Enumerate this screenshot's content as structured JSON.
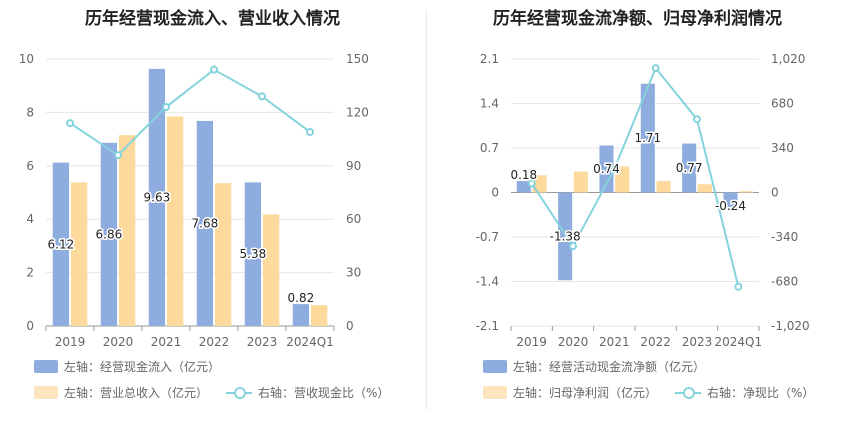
{
  "chart_data": [
    {
      "id": "left",
      "type": "bar",
      "title": "历年经营现金流入、营业收入情况",
      "categories": [
        "2019",
        "2020",
        "2021",
        "2022",
        "2023",
        "2024Q1"
      ],
      "series": [
        {
          "name": "左轴：经营现金流入（亿元）",
          "type": "bar",
          "axis": "left",
          "color": "#8eacdd",
          "values": [
            6.12,
            6.86,
            9.63,
            7.68,
            5.38,
            0.82
          ],
          "labels": [
            "6.12",
            "6.86",
            "9.63",
            "7.68",
            "5.38",
            "0.82"
          ]
        },
        {
          "name": "左轴：营业总收入（亿元）",
          "type": "bar",
          "axis": "left",
          "color": "#fdd99b",
          "values": [
            5.38,
            7.15,
            7.85,
            5.35,
            4.18,
            0.78
          ]
        },
        {
          "name": "右轴：营收现金比（%）",
          "type": "line",
          "axis": "right",
          "color": "#85d3dc",
          "values": [
            114,
            96,
            123,
            144,
            129,
            109
          ]
        }
      ],
      "left_axis": {
        "min": 0,
        "max": 10,
        "ticks": [
          "0",
          "2",
          "4",
          "6",
          "8",
          "10"
        ],
        "tick_values": [
          0,
          2,
          4,
          6,
          8,
          10
        ]
      },
      "right_axis": {
        "min": 0,
        "max": 150,
        "ticks": [
          "0",
          "30",
          "60",
          "90",
          "120",
          "150"
        ],
        "tick_values": [
          0,
          30,
          60,
          90,
          120,
          150
        ]
      },
      "grid": true,
      "legend": [
        {
          "label": "左轴：经营现金流入（亿元）",
          "kind": "bar",
          "color": "#8eacdd"
        },
        {
          "label": "左轴：营业总收入（亿元）",
          "kind": "bar",
          "color": "#fdd99b"
        },
        {
          "label": "右轴：营收现金比（%）",
          "kind": "line",
          "color": "#85d3dc"
        }
      ]
    },
    {
      "id": "right",
      "type": "bar",
      "title": "历年经营现金流净额、归母净利润情况",
      "categories": [
        "2019",
        "2020",
        "2021",
        "2022",
        "2023",
        "2024Q1"
      ],
      "series": [
        {
          "name": "左轴：经营活动现金流净额（亿元）",
          "type": "bar",
          "axis": "left",
          "color": "#8eacdd",
          "values": [
            0.18,
            -1.38,
            0.74,
            1.71,
            0.77,
            -0.24
          ],
          "labels": [
            "0.18",
            "-1.38",
            "0.74",
            "1.71",
            "0.77",
            "-0.24"
          ]
        },
        {
          "name": "左轴：归母净利润（亿元）",
          "type": "bar",
          "axis": "left",
          "color": "#fdd99b",
          "values": [
            0.27,
            0.33,
            0.41,
            0.18,
            0.13,
            0.02
          ]
        },
        {
          "name": "右轴：净现比（%）",
          "type": "line",
          "axis": "right",
          "color": "#85d3dc",
          "values": [
            70,
            -410,
            180,
            950,
            560,
            -720
          ]
        }
      ],
      "left_axis": {
        "min": -2.1,
        "max": 2.1,
        "ticks": [
          "-2.1",
          "-1.4",
          "-0.7",
          "0",
          "0.7",
          "1.4",
          "2.1"
        ],
        "tick_values": [
          -2.1,
          -1.4,
          -0.7,
          0,
          0.7,
          1.4,
          2.1
        ]
      },
      "right_axis": {
        "min": -1020,
        "max": 1020,
        "ticks": [
          "-1,020",
          "-680",
          "-340",
          "0",
          "340",
          "680",
          "1,020"
        ],
        "tick_values": [
          -1020,
          -680,
          -340,
          0,
          340,
          680,
          1020
        ]
      },
      "grid": true,
      "legend": [
        {
          "label": "左轴：经营活动现金流净额（亿元）",
          "kind": "bar",
          "color": "#8eacdd"
        },
        {
          "label": "左轴：归母净利润（亿元）",
          "kind": "bar",
          "color": "#fdd99b"
        },
        {
          "label": "右轴：净现比（%）",
          "kind": "line",
          "color": "#85d3dc"
        }
      ]
    }
  ]
}
